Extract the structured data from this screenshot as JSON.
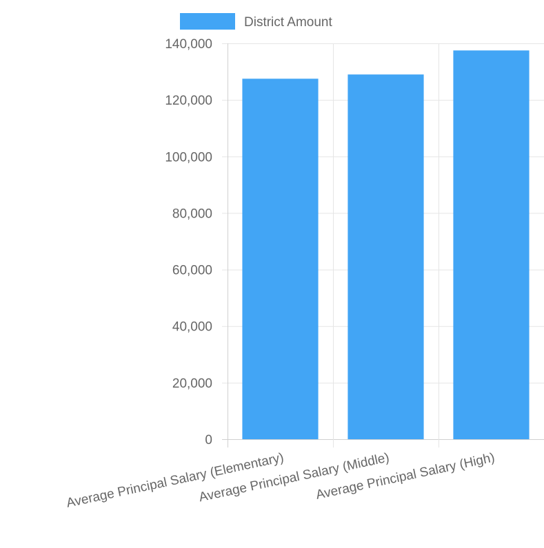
{
  "chart_data": {
    "type": "bar",
    "categories": [
      "Average Principal Salary (Elementary)",
      "Average Principal Salary (Middle)",
      "Average Principal Salary (High)"
    ],
    "series": [
      {
        "name": "District Amount",
        "values": [
          127500,
          129000,
          137500
        ]
      }
    ],
    "ylim": [
      0,
      140000
    ],
    "yticks": [
      0,
      20000,
      40000,
      60000,
      80000,
      100000,
      120000,
      140000
    ],
    "ytick_labels": [
      "0",
      "20,000",
      "40,000",
      "60,000",
      "80,000",
      "100,000",
      "120,000",
      "140,000"
    ],
    "grid": true,
    "legend_position": "top",
    "colors": {
      "bar": "#42a5f5",
      "grid": "#e5e5e5",
      "axis": "#d0d0d0",
      "text": "#666666"
    }
  }
}
